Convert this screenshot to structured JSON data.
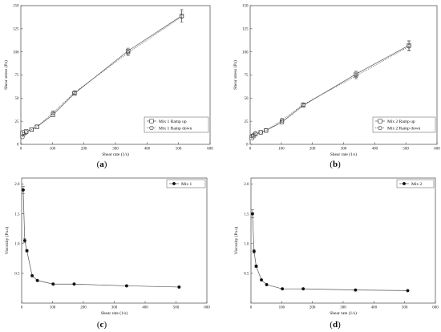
{
  "chart_data": [
    {
      "panel_label": "(a)",
      "type": "line",
      "xlabel": "Shear rate (1/s)",
      "ylabel": "Shear stress (Pa)",
      "xlim": [
        0,
        600
      ],
      "ylim": [
        0,
        150
      ],
      "x_ticks": [
        0,
        100,
        200,
        300,
        400,
        500,
        600
      ],
      "y_ticks": [
        0,
        25,
        50,
        75,
        100,
        125,
        150
      ],
      "x_tick_labels": [
        "0",
        "100",
        "200",
        "300",
        "400",
        "500",
        "600"
      ],
      "y_tick_labels": [
        "0",
        "25",
        "50",
        "75",
        "100",
        "125",
        "150"
      ],
      "grid": false,
      "legend_position": "bottom-right",
      "series": [
        {
          "name": "Mix 1 Ramp up",
          "marker": "square",
          "line": "solid",
          "x": [
            5,
            10,
            17,
            34,
            51,
            102,
            170,
            340,
            510
          ],
          "y": [
            12,
            13,
            14,
            16,
            19,
            32,
            55,
            101,
            139
          ],
          "err": [
            0,
            0,
            0,
            0,
            0,
            2,
            2,
            3,
            7
          ]
        },
        {
          "name": "Mix 1 Ramp down",
          "marker": "circle",
          "line": "dotted",
          "x": [
            5,
            10,
            17,
            34,
            51,
            102,
            170,
            340,
            510
          ],
          "y": [
            8,
            11,
            13,
            16,
            19,
            34,
            56,
            99,
            138
          ],
          "err": [
            0,
            0,
            0,
            0,
            0,
            2,
            2,
            3,
            6
          ]
        }
      ]
    },
    {
      "panel_label": "(b)",
      "type": "line",
      "xlabel": "Shear rate (1/s)",
      "ylabel": "Shear stress (Pa)",
      "xlim": [
        0,
        600
      ],
      "ylim": [
        0,
        150
      ],
      "x_ticks": [
        0,
        100,
        200,
        300,
        400,
        500,
        600
      ],
      "y_ticks": [
        0,
        25,
        50,
        75,
        100,
        125,
        150
      ],
      "x_tick_labels": [
        "0",
        "100",
        "200",
        "300",
        "400",
        "500",
        "600"
      ],
      "y_tick_labels": [
        "0",
        "25",
        "50",
        "75",
        "100",
        "125",
        "150"
      ],
      "grid": false,
      "legend_position": "bottom-right",
      "series": [
        {
          "name": "Mix 2 Ramp up",
          "marker": "square",
          "line": "solid",
          "x": [
            5,
            10,
            17,
            34,
            51,
            102,
            170,
            340,
            510
          ],
          "y": [
            7,
            9,
            11,
            13,
            15,
            24,
            42,
            76,
            107
          ],
          "err": [
            0,
            0,
            0,
            0,
            0,
            2,
            2,
            3,
            5
          ]
        },
        {
          "name": "Mix 2 Ramp down",
          "marker": "circle",
          "line": "dotted",
          "x": [
            5,
            10,
            17,
            34,
            51,
            102,
            170,
            340,
            510
          ],
          "y": [
            9,
            10,
            12,
            13,
            15,
            26,
            43,
            74,
            106
          ],
          "err": [
            0,
            0,
            0,
            0,
            0,
            2,
            2,
            3,
            5
          ]
        }
      ]
    },
    {
      "panel_label": "(c)",
      "type": "line",
      "xlabel": "Shear rate (1/s)",
      "ylabel": "Viscosity (Pa.s)",
      "xlim": [
        0,
        600
      ],
      "ylim": [
        0,
        2.1
      ],
      "x_ticks": [
        0,
        100,
        200,
        300,
        400,
        500,
        600
      ],
      "y_ticks": [
        0.5,
        1.0,
        1.5,
        2.0
      ],
      "x_tick_labels": [
        "0",
        "100",
        "200",
        "300",
        "400",
        "500",
        "600"
      ],
      "y_tick_labels": [
        "0.5",
        "1.0",
        "1.5",
        "2.0"
      ],
      "grid": false,
      "legend_position": "top-right",
      "series": [
        {
          "name": "Mix 1",
          "marker": "filled-circle",
          "line": "solid",
          "x": [
            5,
            10,
            17,
            34,
            51,
            102,
            170,
            340,
            510
          ],
          "y": [
            1.9,
            1.05,
            0.88,
            0.46,
            0.38,
            0.32,
            0.32,
            0.29,
            0.27
          ],
          "err": [
            0.06,
            0.03,
            0.02,
            0,
            0,
            0,
            0,
            0,
            0
          ]
        }
      ]
    },
    {
      "panel_label": "(d)",
      "type": "line",
      "xlabel": "Shear rate (1/s)",
      "ylabel": "Viscosity (Pa.s)",
      "xlim": [
        0,
        600
      ],
      "ylim": [
        0,
        2.1
      ],
      "x_ticks": [
        0,
        100,
        200,
        300,
        400,
        500,
        600
      ],
      "y_ticks": [
        0.5,
        1.0,
        1.5,
        2.0
      ],
      "x_tick_labels": [
        "0",
        "100",
        "200",
        "300",
        "400",
        "500",
        "600"
      ],
      "y_tick_labels": [
        "0.5",
        "1.0",
        "1.5",
        "2.0"
      ],
      "grid": false,
      "legend_position": "top-right",
      "series": [
        {
          "name": "Mix 2",
          "marker": "filled-circle",
          "line": "solid",
          "x": [
            5,
            10,
            17,
            34,
            51,
            102,
            170,
            340,
            510
          ],
          "y": [
            1.5,
            0.87,
            0.62,
            0.39,
            0.31,
            0.24,
            0.24,
            0.22,
            0.21
          ],
          "err": [
            0.07,
            0.03,
            0.02,
            0,
            0,
            0,
            0,
            0,
            0
          ]
        }
      ]
    }
  ]
}
